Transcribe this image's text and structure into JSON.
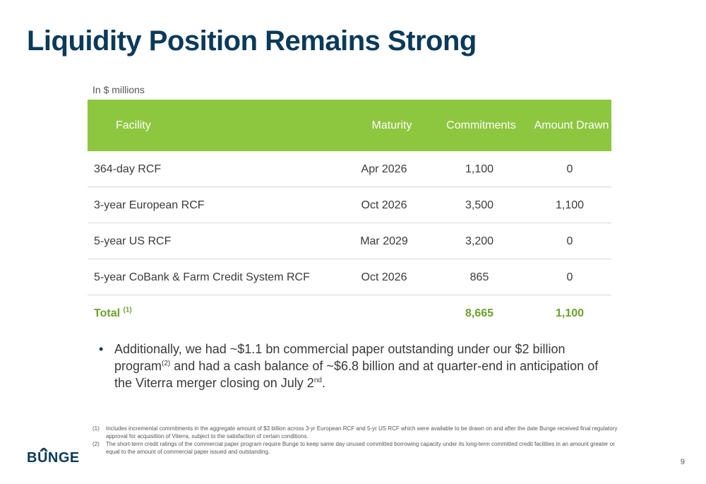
{
  "title": "Liquidity Position Remains Strong",
  "units": "In $ millions",
  "table": {
    "headers": [
      "Facility",
      "Maturity",
      "Commitments",
      "Amount Drawn"
    ],
    "rows": [
      [
        "364-day RCF",
        "Apr 2026",
        "1,100",
        "0"
      ],
      [
        "3-year European RCF",
        "Oct 2026",
        "3,500",
        "1,100"
      ],
      [
        "5-year US RCF",
        "Mar 2029",
        "3,200",
        "0"
      ],
      [
        "5-year CoBank & Farm Credit System RCF",
        "Oct 2026",
        "865",
        "0"
      ]
    ],
    "total": {
      "label": "Total",
      "note": "(1)",
      "commitments": "8,665",
      "drawn": "1,100"
    }
  },
  "bullet": {
    "part1": "Additionally, we had ~$1.1 bn commercial paper outstanding under our $2 billion program",
    "sup1": "(2)",
    "part2": " and had a cash balance of ~$6.8 billion and at quarter-end in anticipation of the Viterra merger closing on July 2",
    "sup2": "nd",
    "part3": "."
  },
  "footnotes": [
    {
      "num": "(1)",
      "text": "Includes incremental commitments in the aggregate amount of $3 billion across 3-yr European RCF and 5-yr US RCF which were available to be drawn on and after the date Bunge received final regulatory approval for acquisition of Viterra, subject to the satisfaction of certain conditions."
    },
    {
      "num": "(2)",
      "text": "The short-term credit ratings of the commercial paper program require Bunge to keep same day unused committed borrowing capacity under its long-term committed credit facilities in an amount greater or equal to the amount of commercial paper issued and outstanding."
    }
  ],
  "logo": "BUNGE",
  "page_number": "9",
  "colors": {
    "title": "#0b3a5a",
    "header_bg": "#8dc63f",
    "total": "#6aa12c"
  }
}
